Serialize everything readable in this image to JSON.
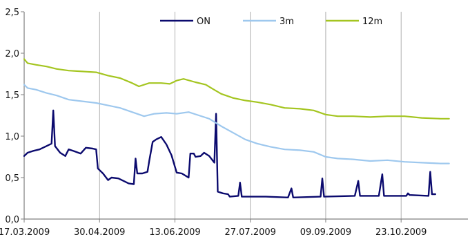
{
  "chart_data": {
    "type": "line",
    "title": "",
    "xlabel": "",
    "ylabel": "",
    "x_ticks": [
      "17.03.2009",
      "30.04.2009",
      "13.06.2009",
      "27.07.2009",
      "09.09.2009",
      "23.10.2009"
    ],
    "y_ticks": [
      "0,0",
      "0,5",
      "1,0",
      "1,5",
      "2,0",
      "2,5"
    ],
    "ylim": [
      0,
      2.5
    ],
    "xlim": [
      "2009-03-17",
      "2009-12-01"
    ],
    "grid": "vertical",
    "legend_position": "top-right",
    "series": [
      {
        "name": "ON",
        "color": "#0b0a6e",
        "points": [
          [
            "2009-03-17",
            0.76
          ],
          [
            "2009-03-19",
            0.8
          ],
          [
            "2009-03-22",
            0.82
          ],
          [
            "2009-03-26",
            0.84
          ],
          [
            "2009-03-30",
            0.88
          ],
          [
            "2009-04-02",
            0.91
          ],
          [
            "2009-04-03",
            1.31
          ],
          [
            "2009-04-04",
            0.88
          ],
          [
            "2009-04-07",
            0.8
          ],
          [
            "2009-04-10",
            0.76
          ],
          [
            "2009-04-12",
            0.84
          ],
          [
            "2009-04-15",
            0.82
          ],
          [
            "2009-04-19",
            0.79
          ],
          [
            "2009-04-22",
            0.86
          ],
          [
            "2009-04-26",
            0.85
          ],
          [
            "2009-04-28",
            0.84
          ],
          [
            "2009-04-29",
            0.61
          ],
          [
            "2009-05-02",
            0.55
          ],
          [
            "2009-05-05",
            0.47
          ],
          [
            "2009-05-07",
            0.5
          ],
          [
            "2009-05-11",
            0.49
          ],
          [
            "2009-05-14",
            0.46
          ],
          [
            "2009-05-17",
            0.43
          ],
          [
            "2009-05-20",
            0.42
          ],
          [
            "2009-05-21",
            0.73
          ],
          [
            "2009-05-22",
            0.55
          ],
          [
            "2009-05-25",
            0.55
          ],
          [
            "2009-05-28",
            0.57
          ],
          [
            "2009-05-29",
            0.7
          ],
          [
            "2009-05-31",
            0.93
          ],
          [
            "2009-06-02",
            0.96
          ],
          [
            "2009-06-05",
            0.99
          ],
          [
            "2009-06-08",
            0.9
          ],
          [
            "2009-06-11",
            0.77
          ],
          [
            "2009-06-14",
            0.56
          ],
          [
            "2009-06-17",
            0.55
          ],
          [
            "2009-06-21",
            0.5
          ],
          [
            "2009-06-22",
            0.79
          ],
          [
            "2009-06-24",
            0.79
          ],
          [
            "2009-06-25",
            0.75
          ],
          [
            "2009-06-28",
            0.76
          ],
          [
            "2009-06-30",
            0.8
          ],
          [
            "2009-07-03",
            0.76
          ],
          [
            "2009-07-06",
            0.68
          ],
          [
            "2009-07-07",
            1.27
          ],
          [
            "2009-07-08",
            0.33
          ],
          [
            "2009-07-11",
            0.31
          ],
          [
            "2009-07-14",
            0.3
          ],
          [
            "2009-07-15",
            0.27
          ],
          [
            "2009-07-20",
            0.28
          ],
          [
            "2009-07-21",
            0.44
          ],
          [
            "2009-07-22",
            0.27
          ],
          [
            "2009-08-05",
            0.27
          ],
          [
            "2009-08-18",
            0.26
          ],
          [
            "2009-08-20",
            0.37
          ],
          [
            "2009-08-21",
            0.26
          ],
          [
            "2009-09-06",
            0.27
          ],
          [
            "2009-09-07",
            0.49
          ],
          [
            "2009-09-08",
            0.27
          ],
          [
            "2009-09-26",
            0.28
          ],
          [
            "2009-09-28",
            0.46
          ],
          [
            "2009-09-29",
            0.28
          ],
          [
            "2009-10-10",
            0.28
          ],
          [
            "2009-10-12",
            0.54
          ],
          [
            "2009-10-13",
            0.28
          ],
          [
            "2009-10-26",
            0.28
          ],
          [
            "2009-10-27",
            0.31
          ],
          [
            "2009-10-28",
            0.29
          ],
          [
            "2009-11-08",
            0.28
          ],
          [
            "2009-11-09",
            0.57
          ],
          [
            "2009-11-10",
            0.3
          ],
          [
            "2009-11-12",
            0.3
          ]
        ]
      },
      {
        "name": "3m",
        "color": "#9ec8ee",
        "points": [
          [
            "2009-03-17",
            1.62
          ],
          [
            "2009-03-19",
            1.58
          ],
          [
            "2009-03-24",
            1.56
          ],
          [
            "2009-03-30",
            1.52
          ],
          [
            "2009-04-05",
            1.49
          ],
          [
            "2009-04-12",
            1.44
          ],
          [
            "2009-04-20",
            1.42
          ],
          [
            "2009-04-28",
            1.4
          ],
          [
            "2009-05-05",
            1.37
          ],
          [
            "2009-05-12",
            1.34
          ],
          [
            "2009-05-19",
            1.29
          ],
          [
            "2009-05-26",
            1.24
          ],
          [
            "2009-06-01",
            1.27
          ],
          [
            "2009-06-08",
            1.28
          ],
          [
            "2009-06-14",
            1.27
          ],
          [
            "2009-06-21",
            1.29
          ],
          [
            "2009-06-27",
            1.25
          ],
          [
            "2009-07-03",
            1.21
          ],
          [
            "2009-07-10",
            1.12
          ],
          [
            "2009-07-17",
            1.04
          ],
          [
            "2009-07-24",
            0.96
          ],
          [
            "2009-07-31",
            0.91
          ],
          [
            "2009-08-08",
            0.87
          ],
          [
            "2009-08-16",
            0.84
          ],
          [
            "2009-08-25",
            0.83
          ],
          [
            "2009-09-02",
            0.81
          ],
          [
            "2009-09-09",
            0.75
          ],
          [
            "2009-09-16",
            0.73
          ],
          [
            "2009-09-25",
            0.72
          ],
          [
            "2009-10-05",
            0.7
          ],
          [
            "2009-10-15",
            0.71
          ],
          [
            "2009-10-25",
            0.69
          ],
          [
            "2009-11-04",
            0.68
          ],
          [
            "2009-11-15",
            0.67
          ],
          [
            "2009-11-20",
            0.67
          ]
        ]
      },
      {
        "name": "12m",
        "color": "#a4c520",
        "points": [
          [
            "2009-03-17",
            1.93
          ],
          [
            "2009-03-19",
            1.88
          ],
          [
            "2009-03-24",
            1.86
          ],
          [
            "2009-03-30",
            1.84
          ],
          [
            "2009-04-05",
            1.81
          ],
          [
            "2009-04-12",
            1.79
          ],
          [
            "2009-04-20",
            1.78
          ],
          [
            "2009-04-28",
            1.77
          ],
          [
            "2009-05-05",
            1.73
          ],
          [
            "2009-05-12",
            1.7
          ],
          [
            "2009-05-19",
            1.64
          ],
          [
            "2009-05-23",
            1.6
          ],
          [
            "2009-05-29",
            1.64
          ],
          [
            "2009-06-05",
            1.64
          ],
          [
            "2009-06-10",
            1.63
          ],
          [
            "2009-06-14",
            1.67
          ],
          [
            "2009-06-18",
            1.69
          ],
          [
            "2009-06-25",
            1.65
          ],
          [
            "2009-07-01",
            1.62
          ],
          [
            "2009-07-05",
            1.57
          ],
          [
            "2009-07-10",
            1.51
          ],
          [
            "2009-07-17",
            1.46
          ],
          [
            "2009-07-24",
            1.43
          ],
          [
            "2009-07-31",
            1.41
          ],
          [
            "2009-08-08",
            1.38
          ],
          [
            "2009-08-16",
            1.34
          ],
          [
            "2009-08-25",
            1.33
          ],
          [
            "2009-09-02",
            1.31
          ],
          [
            "2009-09-09",
            1.26
          ],
          [
            "2009-09-16",
            1.24
          ],
          [
            "2009-09-25",
            1.24
          ],
          [
            "2009-10-05",
            1.23
          ],
          [
            "2009-10-15",
            1.24
          ],
          [
            "2009-10-25",
            1.24
          ],
          [
            "2009-11-04",
            1.22
          ],
          [
            "2009-11-15",
            1.21
          ],
          [
            "2009-11-20",
            1.21
          ]
        ]
      }
    ]
  }
}
